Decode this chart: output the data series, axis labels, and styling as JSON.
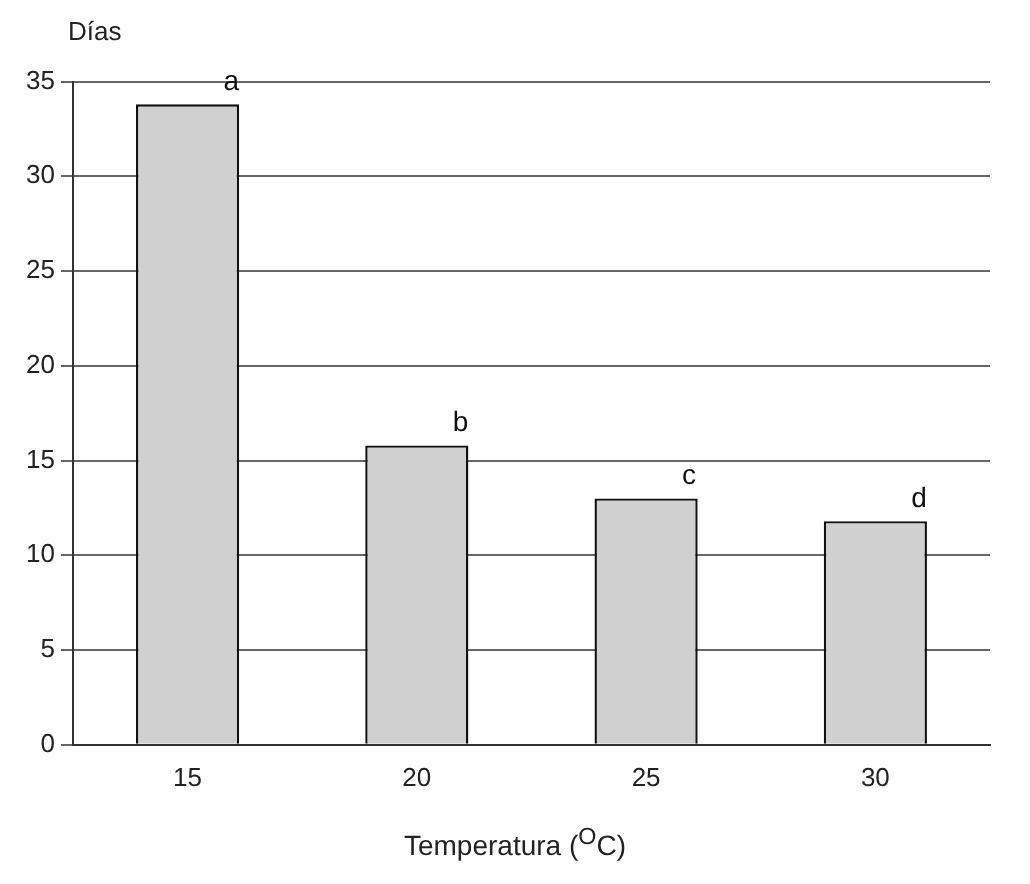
{
  "chart_data": {
    "type": "bar",
    "xlabel": "Temperatura ($^{O}$C)",
    "ylabel": "Días",
    "categories": [
      "15",
      "20",
      "25",
      "30"
    ],
    "values": [
      33.8,
      15.8,
      13,
      11.8
    ],
    "color": "#d0d0d0",
    "ylim": [
      0,
      35
    ],
    "yticks": [
      0,
      5,
      10,
      15,
      20,
      25,
      30,
      35
    ],
    "grid": "y",
    "annotations": [
      {
        "text": "a",
        "x": "15",
        "y": 33.8
      },
      {
        "text": "b",
        "x": "20",
        "y": 15.8
      },
      {
        "text": "c",
        "x": "25",
        "y": 13
      },
      {
        "text": "d",
        "x": "30",
        "y": 11.8
      }
    ]
  }
}
